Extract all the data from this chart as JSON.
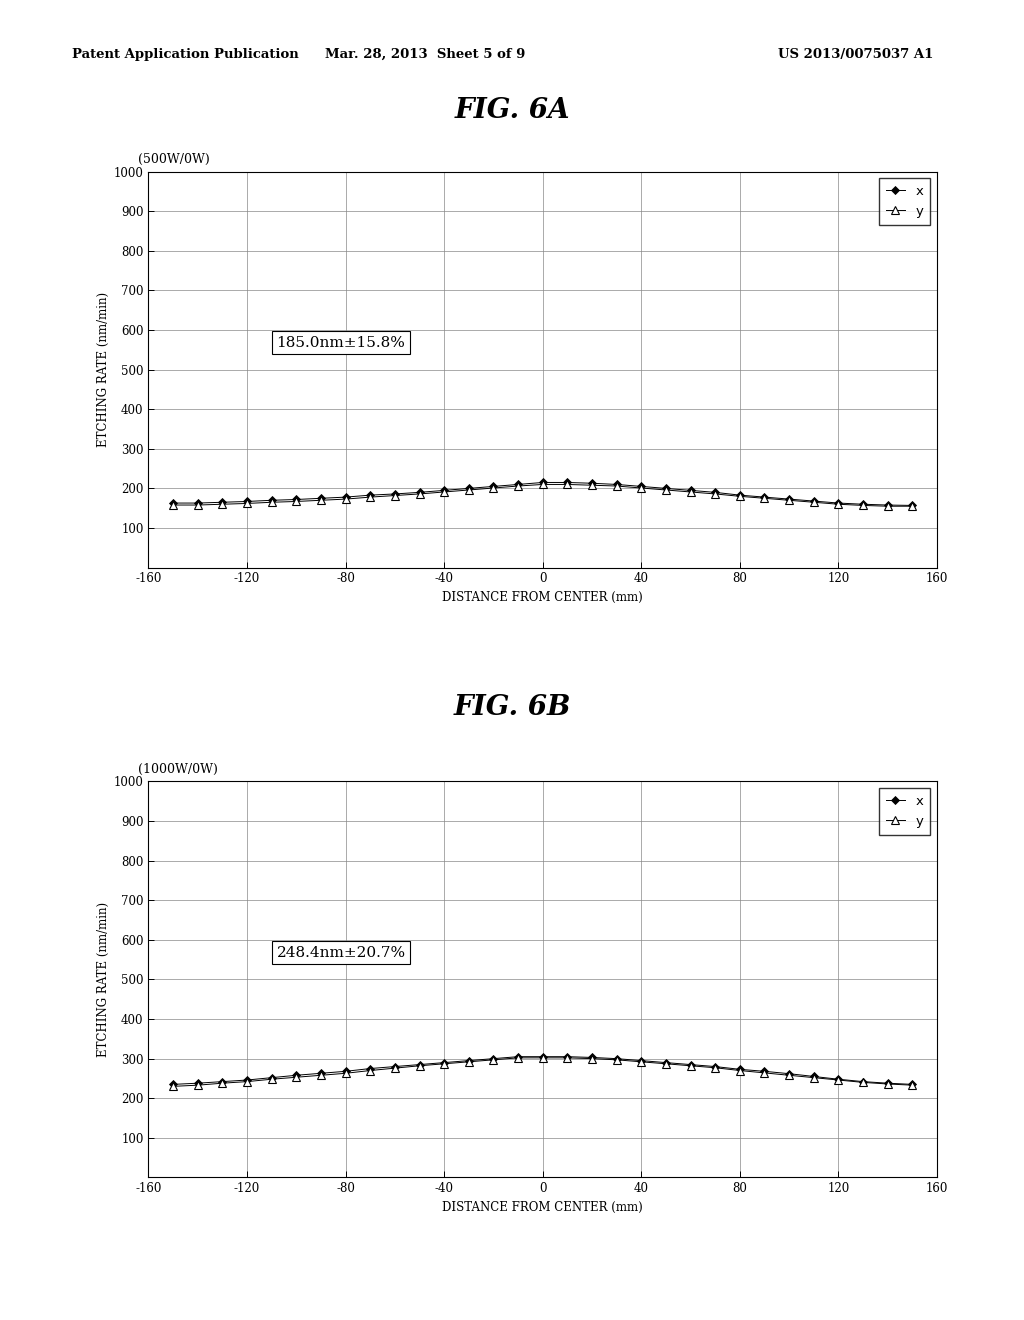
{
  "header_left": "Patent Application Publication",
  "header_mid": "Mar. 28, 2013  Sheet 5 of 9",
  "header_right": "US 2013/0075037 A1",
  "fig6a_title": "FIG. 6A",
  "fig6a_subtitle": "(500W/0W)",
  "fig6a_annotation": "185.0nm±15.8%",
  "fig6b_title": "FIG. 6B",
  "fig6b_subtitle": "(1000W/0W)",
  "fig6b_annotation": "248.4nm±20.7%",
  "xlabel": "DISTANCE FROM CENTER (mm)",
  "ylabel": "ETCHING RATE (nm/min)",
  "xlim": [
    -160,
    160
  ],
  "xticks": [
    -160,
    -120,
    -80,
    -40,
    0,
    40,
    80,
    120,
    160
  ],
  "ylim": [
    0,
    1000
  ],
  "yticks": [
    100,
    200,
    300,
    400,
    500,
    600,
    700,
    800,
    900,
    1000
  ],
  "background": "#ffffff",
  "fig6a_x_data": [
    -150,
    -140,
    -130,
    -120,
    -110,
    -100,
    -90,
    -80,
    -70,
    -60,
    -50,
    -40,
    -30,
    -20,
    -10,
    0,
    10,
    20,
    30,
    40,
    50,
    60,
    70,
    80,
    90,
    100,
    110,
    120,
    130,
    140,
    150
  ],
  "fig6a_x_vals": [
    163,
    163,
    165,
    167,
    170,
    172,
    175,
    178,
    183,
    186,
    190,
    195,
    200,
    205,
    210,
    215,
    215,
    213,
    210,
    205,
    200,
    195,
    190,
    183,
    178,
    173,
    168,
    163,
    160,
    158,
    157
  ],
  "fig6a_y_vals": [
    158,
    158,
    160,
    162,
    165,
    167,
    170,
    173,
    178,
    182,
    186,
    191,
    196,
    201,
    206,
    210,
    210,
    208,
    206,
    201,
    196,
    191,
    186,
    180,
    175,
    170,
    165,
    160,
    157,
    155,
    155
  ],
  "fig6b_x_data": [
    -150,
    -140,
    -130,
    -120,
    -110,
    -100,
    -90,
    -80,
    -70,
    -60,
    -50,
    -40,
    -30,
    -20,
    -10,
    0,
    10,
    20,
    30,
    40,
    50,
    60,
    70,
    80,
    90,
    100,
    110,
    120,
    130,
    140,
    150
  ],
  "fig6b_x_vals": [
    235,
    238,
    242,
    246,
    252,
    258,
    263,
    268,
    275,
    280,
    285,
    290,
    295,
    300,
    305,
    305,
    305,
    303,
    300,
    295,
    290,
    285,
    280,
    273,
    268,
    262,
    255,
    248,
    242,
    238,
    235
  ],
  "fig6b_y_vals": [
    230,
    233,
    238,
    242,
    248,
    253,
    258,
    263,
    270,
    276,
    282,
    287,
    292,
    297,
    302,
    302,
    302,
    300,
    297,
    292,
    287,
    282,
    277,
    270,
    264,
    258,
    252,
    246,
    240,
    236,
    233
  ]
}
